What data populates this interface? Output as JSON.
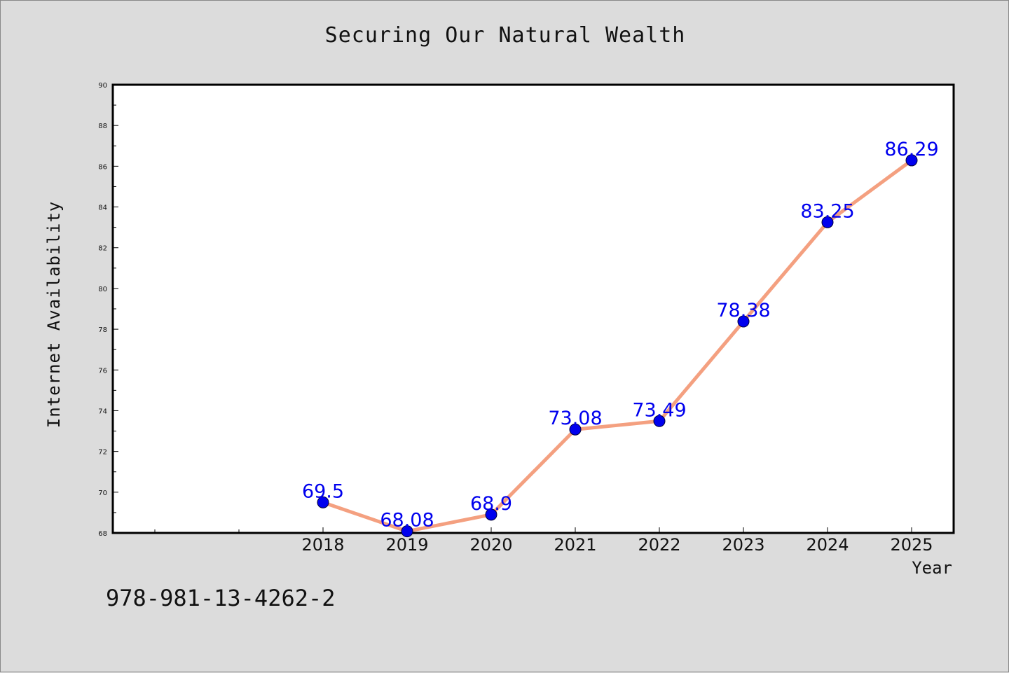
{
  "chart_data": {
    "type": "line",
    "title": "Securing Our Natural Wealth",
    "xlabel": "Year",
    "ylabel": "Internet Availability",
    "x": [
      2018,
      2019,
      2020,
      2021,
      2022,
      2023,
      2024,
      2025
    ],
    "series": [
      {
        "values": [
          69.5,
          68.08,
          68.9,
          73.08,
          73.49,
          78.38,
          83.25,
          86.29
        ],
        "labels": [
          "69.5",
          "68.08",
          "68.9",
          "73.08",
          "73.49",
          "78.38",
          "83.25",
          "86.29"
        ]
      }
    ],
    "ylim": [
      68,
      90
    ],
    "yticks": [
      68,
      70,
      72,
      74,
      76,
      78,
      80,
      82,
      84,
      86,
      88,
      90
    ],
    "xlim": [
      2015.5,
      2025.5
    ],
    "grid": false,
    "colors": {
      "line": "#f4a080",
      "marker": "#0000ee",
      "labels": "#0000ee",
      "plot_background": "#ffffff",
      "page_background": "#dcdcdc"
    }
  },
  "footer": {
    "isbn": "978-981-13-4262-2"
  }
}
